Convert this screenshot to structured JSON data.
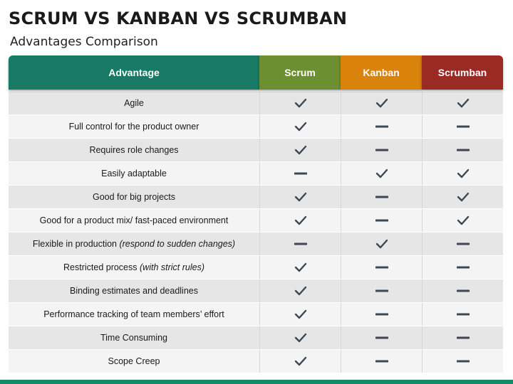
{
  "title": "SCRUM VS KANBAN VS SCRUMBAN",
  "subtitle": "Advantages Comparison",
  "columns": [
    {
      "label": "Advantage",
      "color": "#187a64"
    },
    {
      "label": "Scrum",
      "color": "#6c8f32"
    },
    {
      "label": "Kanban",
      "color": "#d9820c"
    },
    {
      "label": "Scrumban",
      "color": "#9a2a23"
    }
  ],
  "mark_color": "#3d4752",
  "bottom_bar_color": "#178a6a",
  "rows": [
    {
      "label": "Agile",
      "note": "",
      "values": [
        "check",
        "check",
        "check"
      ]
    },
    {
      "label": "Full control for the product owner",
      "note": "",
      "values": [
        "check",
        "dash",
        "dash"
      ]
    },
    {
      "label": "Requires role changes",
      "note": "",
      "values": [
        "check",
        "dash",
        "dash"
      ]
    },
    {
      "label": "Easily adaptable",
      "note": "",
      "values": [
        "dash",
        "check",
        "check"
      ]
    },
    {
      "label": "Good for big projects",
      "note": "",
      "values": [
        "check",
        "dash",
        "check"
      ]
    },
    {
      "label": "Good for a product mix/ fast-paced environment",
      "note": "",
      "values": [
        "check",
        "dash",
        "check"
      ]
    },
    {
      "label": "Flexible in production",
      "note": "(respond to sudden changes)",
      "values": [
        "dash",
        "check",
        "dash"
      ]
    },
    {
      "label": "Restricted process",
      "note": "(with strict rules)",
      "values": [
        "check",
        "dash",
        "dash"
      ]
    },
    {
      "label": "Binding estimates and deadlines",
      "note": "",
      "values": [
        "check",
        "dash",
        "dash"
      ]
    },
    {
      "label": "Performance tracking of team members’ effort",
      "note": "",
      "values": [
        "check",
        "dash",
        "dash"
      ]
    },
    {
      "label": "Time Consuming",
      "note": "",
      "values": [
        "check",
        "dash",
        "dash"
      ]
    },
    {
      "label": "Scope Creep",
      "note": "",
      "values": [
        "check",
        "dash",
        "dash"
      ]
    }
  ]
}
